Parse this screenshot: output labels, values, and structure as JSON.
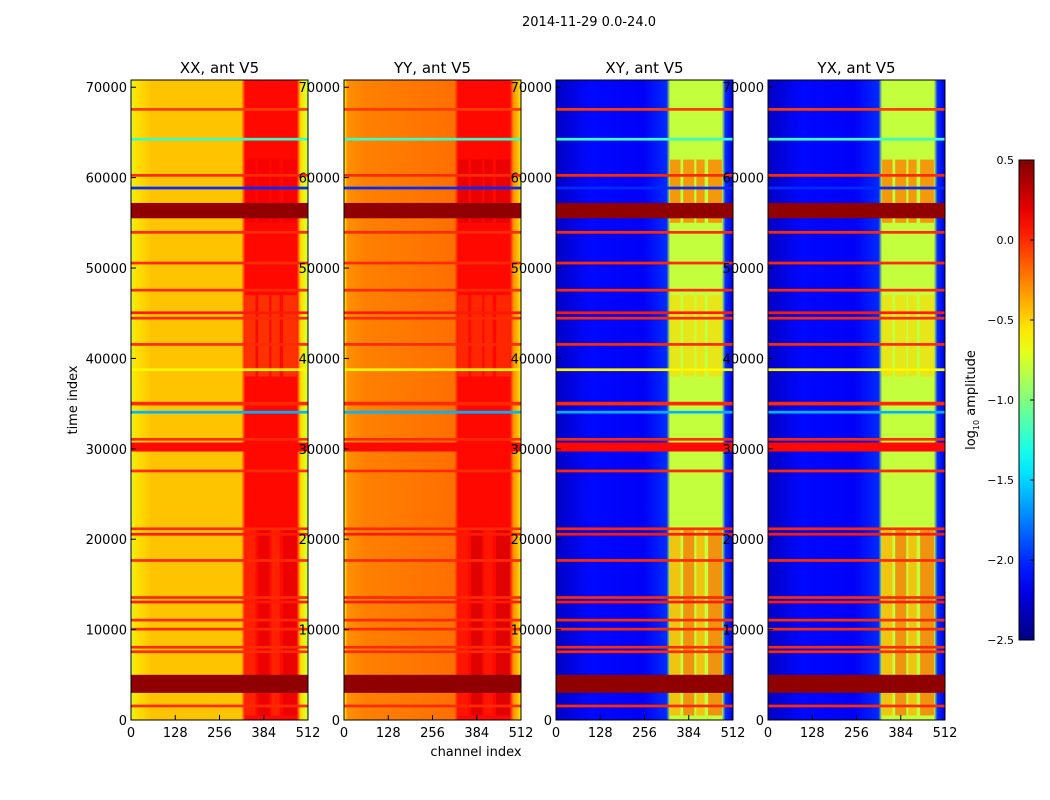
{
  "chart_data": {
    "type": "heatmap",
    "title": "2014-11-29 0.0-24.0",
    "xlabel": "channel index",
    "ylabel": "time index",
    "xlim": [
      0,
      512
    ],
    "ylim": [
      0,
      70800
    ],
    "xticks": [
      0,
      128,
      256,
      384,
      512
    ],
    "yticks": [
      0,
      10000,
      20000,
      30000,
      40000,
      50000,
      60000,
      70000
    ],
    "panels": [
      {
        "title": "XX, ant V5",
        "profile": [
          [
            0,
            -0.8
          ],
          [
            10,
            -0.55
          ],
          [
            60,
            -0.45
          ],
          [
            320,
            -0.45
          ],
          [
            330,
            0.1
          ],
          [
            480,
            0.1
          ],
          [
            490,
            -0.5
          ],
          [
            505,
            -0.7
          ],
          [
            512,
            -0.85
          ]
        ],
        "band_value": 0.3,
        "base": -0.45
      },
      {
        "title": "YY, ant V5",
        "profile": [
          [
            0,
            -0.6
          ],
          [
            10,
            -0.3
          ],
          [
            60,
            -0.25
          ],
          [
            320,
            -0.2
          ],
          [
            330,
            0.1
          ],
          [
            480,
            0.1
          ],
          [
            490,
            -0.3
          ],
          [
            505,
            -0.45
          ],
          [
            512,
            -0.6
          ]
        ],
        "band_value": 0.35,
        "base": -0.25
      },
      {
        "title": "XY, ant V5",
        "profile": [
          [
            0,
            -2.3
          ],
          [
            100,
            -2.1
          ],
          [
            250,
            -2.15
          ],
          [
            320,
            -2.0
          ],
          [
            330,
            -0.8
          ],
          [
            480,
            -0.8
          ],
          [
            490,
            -2.0
          ],
          [
            512,
            -2.2
          ]
        ],
        "band_value": -0.1,
        "base": -2.15
      },
      {
        "title": "YX, ant V5",
        "profile": [
          [
            0,
            -2.3
          ],
          [
            100,
            -2.1
          ],
          [
            250,
            -2.15
          ],
          [
            320,
            -2.0
          ],
          [
            330,
            -0.8
          ],
          [
            480,
            -0.8
          ],
          [
            490,
            -2.0
          ],
          [
            512,
            -2.2
          ]
        ],
        "band_value": -0.1,
        "base": -2.15
      }
    ],
    "rfi_channels": [
      [
        330,
        360
      ],
      [
        368,
        400
      ],
      [
        406,
        430
      ],
      [
        440,
        480
      ]
    ],
    "flagged_rows": [
      {
        "t0": 67400,
        "t1": 67700,
        "v": -0.05
      },
      {
        "t0": 64100,
        "t1": 64400,
        "v": -1.2
      },
      {
        "t0": 60100,
        "t1": 60400,
        "v": 0.0
      },
      {
        "t0": 58700,
        "t1": 59000,
        "v": -2.0
      },
      {
        "t0": 55500,
        "t1": 57200,
        "v": 0.45
      },
      {
        "t0": 53800,
        "t1": 54100,
        "v": 0.0
      },
      {
        "t0": 50400,
        "t1": 50700,
        "v": 0.0
      },
      {
        "t0": 47400,
        "t1": 47700,
        "v": 0.0
      },
      {
        "t0": 44900,
        "t1": 45200,
        "v": 0.05
      },
      {
        "t0": 44300,
        "t1": 44600,
        "v": 0.0
      },
      {
        "t0": 41400,
        "t1": 41700,
        "v": 0.0
      },
      {
        "t0": 38600,
        "t1": 38900,
        "v": -0.6
      },
      {
        "t0": 34800,
        "t1": 35200,
        "v": 0.0
      },
      {
        "t0": 33900,
        "t1": 34200,
        "v": -1.6
      },
      {
        "t0": 30900,
        "t1": 31200,
        "v": 0.0
      },
      {
        "t0": 29700,
        "t1": 30700,
        "v": 0.1
      },
      {
        "t0": 27400,
        "t1": 27700,
        "v": 0.0
      },
      {
        "t0": 21000,
        "t1": 21300,
        "v": 0.0
      },
      {
        "t0": 20400,
        "t1": 20700,
        "v": 0.05
      },
      {
        "t0": 17500,
        "t1": 17800,
        "v": 0.0
      },
      {
        "t0": 13400,
        "t1": 13700,
        "v": 0.0
      },
      {
        "t0": 12900,
        "t1": 13200,
        "v": 0.05
      },
      {
        "t0": 10900,
        "t1": 11200,
        "v": 0.0
      },
      {
        "t0": 9900,
        "t1": 10200,
        "v": 0.0
      },
      {
        "t0": 7900,
        "t1": 8200,
        "v": 0.0
      },
      {
        "t0": 7400,
        "t1": 7700,
        "v": 0.0
      },
      {
        "t0": 3000,
        "t1": 5000,
        "v": 0.45
      },
      {
        "t0": 1400,
        "t1": 1700,
        "v": 0.0
      }
    ],
    "colorbar": {
      "label": "log10 amplitude",
      "label_base": "log",
      "label_sub": "10",
      "label_rest": " amplitude",
      "vmin": -2.5,
      "vmax": 0.5,
      "ticks": [
        "0.5",
        "0.0",
        "−0.5",
        "−1.0",
        "−1.5",
        "−2.0",
        "−2.5"
      ],
      "tick_values": [
        0.5,
        0,
        -0.5,
        -1,
        -1.5,
        -2,
        -2.5
      ],
      "colormap": "jet"
    }
  }
}
